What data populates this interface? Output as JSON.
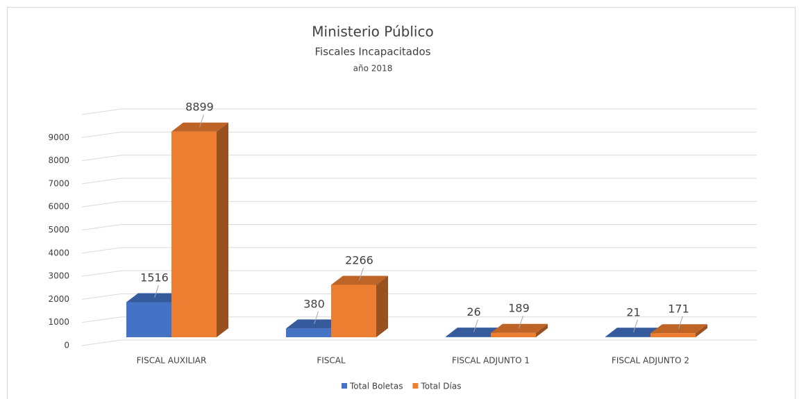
{
  "chart_data": {
    "type": "bar3d",
    "title": "Ministerio Público",
    "subtitle": "Fiscales Incapacitados",
    "period": "año 2018",
    "categories": [
      "FISCAL AUXILIAR",
      "FISCAL",
      "FISCAL ADJUNTO 1",
      "FISCAL ADJUNTO 2"
    ],
    "series": [
      {
        "name": "Total Boletas",
        "color": "#4472c4",
        "values": [
          1516,
          380,
          26,
          21
        ]
      },
      {
        "name": "Total Días",
        "color": "#ed7d31",
        "values": [
          8899,
          2266,
          189,
          171
        ]
      }
    ],
    "ylim": [
      0,
      10000
    ],
    "yticks": [
      0,
      1000,
      2000,
      3000,
      4000,
      5000,
      6000,
      7000,
      8000,
      9000
    ],
    "grid": true,
    "legend": "bottom"
  }
}
